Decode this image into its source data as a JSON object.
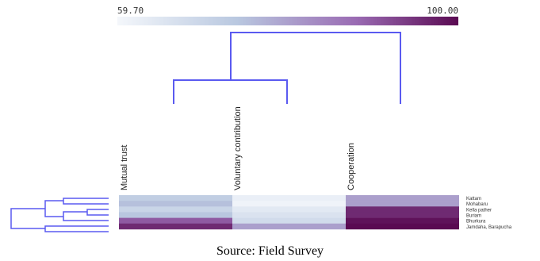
{
  "caption": "Source: Field Survey",
  "chart_data": {
    "type": "heatmap",
    "title": "",
    "color_scale": {
      "min": 59.7,
      "max": 100.0,
      "min_label": "59.70",
      "max_label": "100.00",
      "low_color": "#f2f5fa",
      "high_color": "#5a0a52"
    },
    "columns": [
      "Mutual trust",
      "Voluntary contribution",
      "Cooperation"
    ],
    "rows": [
      "Kattam",
      "Mohabaru",
      "Kella pather",
      "Buriam",
      "Bhurkura",
      "Jamdaha, Barapucha"
    ],
    "values": [
      [
        72,
        62,
        80
      ],
      [
        75,
        61,
        80
      ],
      [
        70,
        64,
        96
      ],
      [
        74,
        66,
        96
      ],
      [
        90,
        68,
        99
      ],
      [
        96,
        80,
        100
      ]
    ],
    "column_dendrogram": "Mutual trust and Voluntary contribution join first; Cooperation joins at top",
    "dendrogram_color": "#5a5af0"
  }
}
